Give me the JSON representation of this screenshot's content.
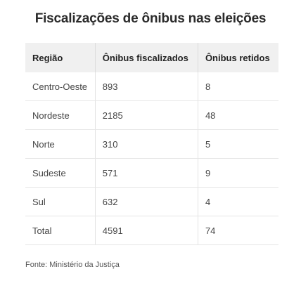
{
  "title": "Fiscalizações de ônibus nas eleições",
  "source": "Fonte: Ministério da Justiça",
  "chart_data": {
    "type": "table",
    "title": "Fiscalizações de ônibus nas eleições",
    "columns": [
      "Região",
      "Ônibus fiscalizados",
      "Ônibus retidos"
    ],
    "rows": [
      [
        "Centro-Oeste",
        "893",
        "8"
      ],
      [
        "Nordeste",
        "2185",
        "48"
      ],
      [
        "Norte",
        "310",
        "5"
      ],
      [
        "Sudeste",
        "571",
        "9"
      ],
      [
        "Sul",
        "632",
        "4"
      ],
      [
        "Total",
        "4591",
        "74"
      ]
    ]
  }
}
